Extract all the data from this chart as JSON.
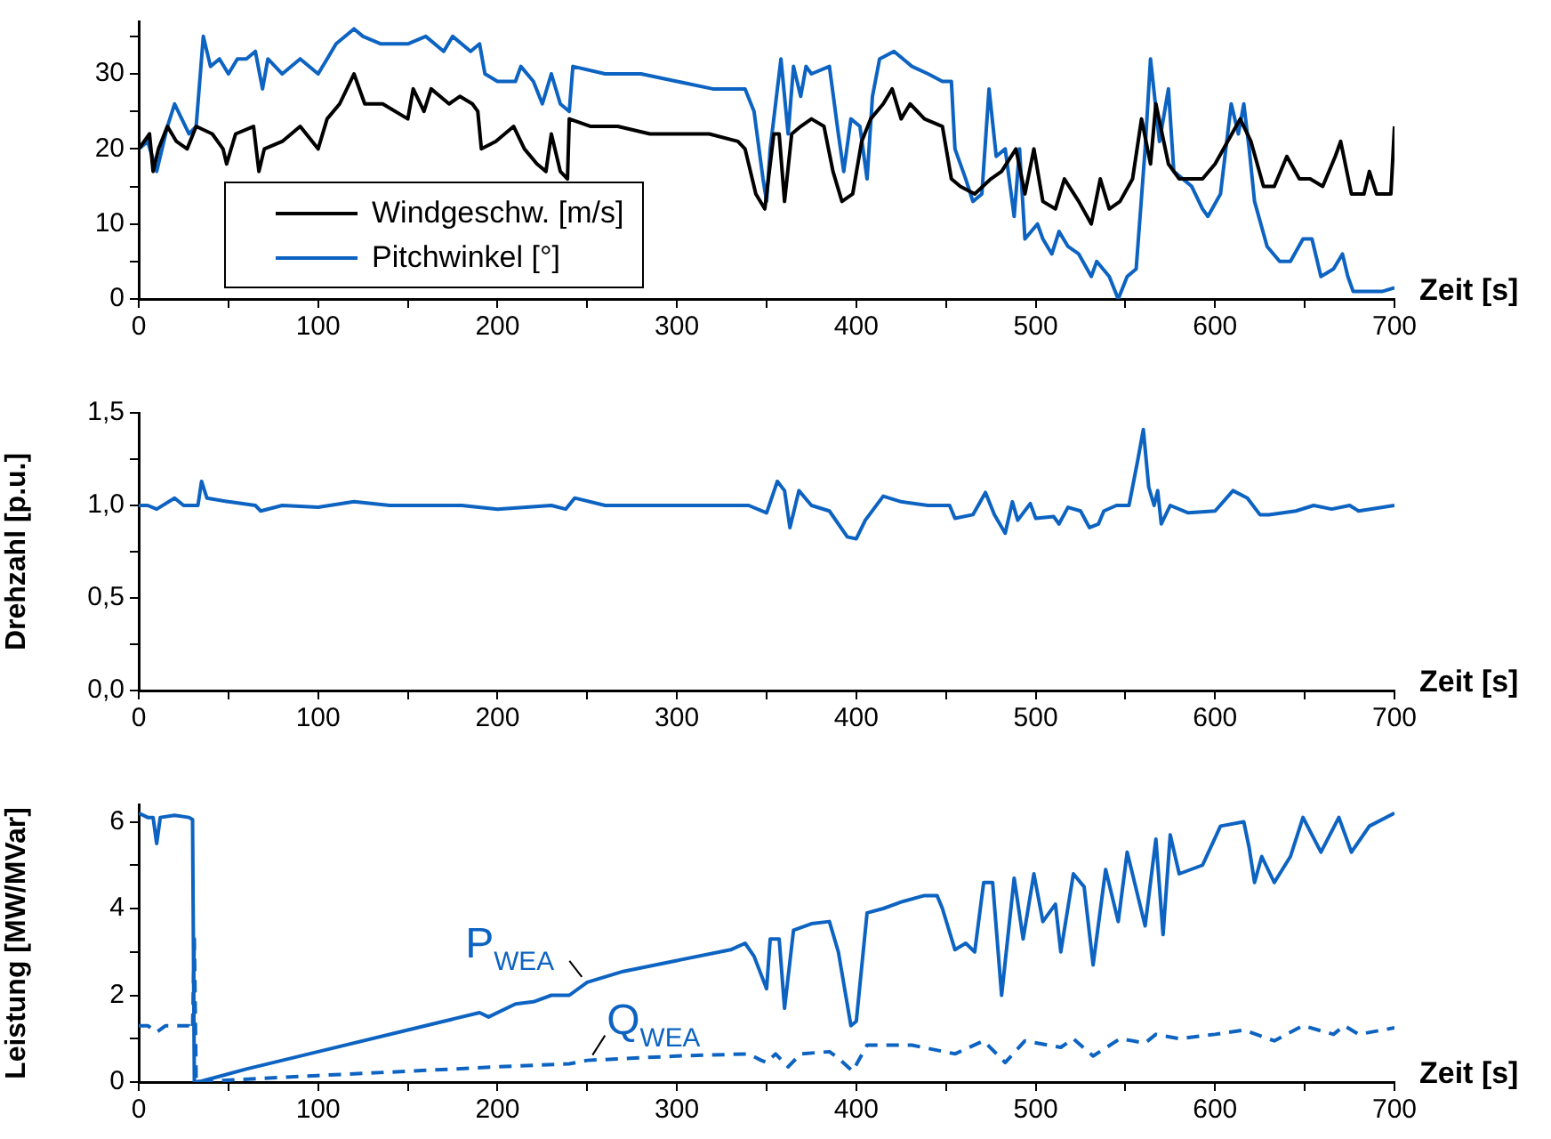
{
  "chart_data": [
    {
      "type": "line",
      "xlabel": "Zeit [s]",
      "xlim": [
        0,
        700
      ],
      "xticks": [
        0,
        {
          "value": 50,
          "label": null
        },
        100,
        {
          "value": 150,
          "label": null
        },
        200,
        {
          "value": 250,
          "label": null
        },
        300,
        {
          "value": 350,
          "label": null
        },
        400,
        {
          "value": 450,
          "label": null
        },
        500,
        {
          "value": 550,
          "label": null
        },
        600,
        {
          "value": 650,
          "label": null
        },
        700
      ],
      "ylim": [
        0,
        37
      ],
      "yticks": [
        0,
        {
          "value": 5,
          "label": null
        },
        10,
        {
          "value": 15,
          "label": null
        },
        20,
        {
          "value": 25,
          "label": null
        },
        30,
        {
          "value": 35,
          "label": null
        }
      ],
      "grid": false,
      "legend": "bottom left",
      "marker": "none",
      "series": [
        {
          "name": "Windgeschw. [m/s]",
          "color": "#000000",
          "line_style": "solid",
          "x": [
            0,
            6,
            8,
            11,
            16,
            21,
            27,
            32,
            41,
            47,
            49,
            54,
            64,
            67,
            70,
            80,
            90,
            100,
            105,
            112,
            120,
            126,
            136,
            150,
            153,
            159,
            163,
            173,
            179,
            186,
            189,
            191,
            199,
            209,
            215,
            222,
            227,
            230,
            235,
            239,
            240,
            252,
            267,
            285,
            302,
            318,
            334,
            338,
            344,
            349,
            354,
            357,
            360,
            364,
            369,
            375,
            382,
            387,
            392,
            398,
            403,
            408,
            415,
            420,
            425,
            430,
            438,
            448,
            453,
            458,
            466,
            475,
            481,
            489,
            494,
            499,
            504,
            511,
            516,
            524,
            531,
            536,
            541,
            547,
            554,
            559,
            564,
            567,
            574,
            580,
            587,
            593,
            600,
            607,
            614,
            620,
            627,
            633,
            640,
            647,
            653,
            660,
            667,
            670,
            676,
            683,
            686,
            690,
            698,
            700
          ],
          "values": [
            20,
            22,
            17,
            20,
            23,
            21,
            20,
            23,
            22,
            20,
            18,
            22,
            23,
            17,
            20,
            21,
            23,
            20,
            24,
            26,
            30,
            26,
            26,
            24,
            28,
            25,
            28,
            26,
            27,
            26,
            25,
            20,
            21,
            23,
            20,
            18,
            17,
            22,
            17,
            16,
            24,
            23,
            23,
            22,
            22,
            22,
            21,
            20,
            14,
            12,
            22,
            22,
            13,
            22,
            23,
            24,
            23,
            17,
            13,
            14,
            21,
            24,
            26,
            28,
            24,
            26,
            24,
            23,
            16,
            15,
            14,
            16,
            17,
            20,
            14,
            20,
            13,
            12,
            16,
            13,
            10,
            16,
            12,
            13,
            16,
            24,
            18,
            26,
            18,
            16,
            16,
            16,
            18,
            21,
            24,
            21,
            15,
            15,
            19,
            16,
            16,
            15,
            19,
            21,
            14,
            14,
            17,
            14,
            14,
            23
          ]
        },
        {
          "name": "Pitchwinkel [°]",
          "color": "#0d63c1",
          "line_style": "solid",
          "x": [
            0,
            5,
            10,
            16,
            20,
            24,
            28,
            32,
            36,
            40,
            45,
            50,
            55,
            60,
            65,
            69,
            72,
            80,
            90,
            100,
            105,
            110,
            120,
            125,
            135,
            150,
            160,
            170,
            175,
            185,
            190,
            193,
            200,
            210,
            213,
            220,
            225,
            230,
            235,
            240,
            242,
            260,
            280,
            300,
            320,
            330,
            338,
            343,
            348,
            350,
            352,
            358,
            362,
            365,
            369,
            372,
            375,
            385,
            390,
            393,
            397,
            402,
            406,
            409,
            413,
            421,
            431,
            440,
            448,
            453,
            455,
            461,
            465,
            470,
            474,
            478,
            483,
            488,
            491,
            494,
            501,
            504,
            509,
            513,
            518,
            524,
            531,
            534,
            541,
            546,
            551,
            556,
            561,
            564,
            569,
            574,
            577,
            587,
            593,
            596,
            603,
            609,
            613,
            616,
            619,
            622,
            629,
            636,
            642,
            649,
            654,
            659,
            666,
            671,
            674,
            677,
            686,
            693,
            700
          ],
          "values": [
            20,
            21,
            17,
            23,
            26,
            24,
            22,
            23,
            35,
            31,
            32,
            30,
            32,
            32,
            33,
            28,
            32,
            30,
            32,
            30,
            32,
            34,
            36,
            35,
            34,
            34,
            35,
            33,
            35,
            33,
            34,
            30,
            29,
            29,
            31,
            29,
            26,
            30,
            26,
            25,
            31,
            30,
            30,
            29,
            28,
            28,
            28,
            25,
            16,
            13,
            20,
            32,
            22,
            31,
            27,
            31,
            30,
            31,
            22,
            17,
            24,
            23,
            16,
            27,
            32,
            33,
            31,
            30,
            29,
            29,
            20,
            16,
            13,
            14,
            28,
            19,
            20,
            11,
            20,
            8,
            10,
            8,
            6,
            9,
            7,
            6,
            3,
            5,
            3,
            0,
            3,
            4,
            20,
            32,
            21,
            28,
            17,
            15,
            12,
            11,
            14,
            26,
            22,
            26,
            20,
            13,
            7,
            5,
            5,
            8,
            8,
            3,
            4,
            6,
            3,
            1,
            1,
            1,
            1.5
          ]
        }
      ]
    },
    {
      "type": "line",
      "ylabel": "Drehzahl [p.u.]",
      "xlabel": "Zeit [s]",
      "xlim": [
        0,
        700
      ],
      "xticks": [
        0,
        {
          "value": 50,
          "label": null
        },
        100,
        {
          "value": 150,
          "label": null
        },
        200,
        {
          "value": 250,
          "label": null
        },
        300,
        {
          "value": 350,
          "label": null
        },
        400,
        {
          "value": 450,
          "label": null
        },
        500,
        {
          "value": 550,
          "label": null
        },
        600,
        {
          "value": 650,
          "label": null
        },
        700
      ],
      "ylim": [
        0,
        1.5
      ],
      "yticks": [
        {
          "value": 0,
          "label": "0,0"
        },
        {
          "value": 0.25,
          "label": null
        },
        {
          "value": 0.5,
          "label": "0,5"
        },
        {
          "value": 0.75,
          "label": null
        },
        {
          "value": 1,
          "label": "1,0"
        },
        {
          "value": 1.25,
          "label": null
        },
        {
          "value": 1.5,
          "label": "1,5"
        }
      ],
      "grid": false,
      "marker": "none",
      "series": [
        {
          "color": "#0d63c1",
          "line_style": "solid",
          "x": [
            0,
            5,
            10,
            20,
            25,
            33,
            35,
            38,
            50,
            65,
            68,
            80,
            100,
            120,
            140,
            180,
            200,
            230,
            238,
            243,
            260,
            300,
            340,
            350,
            356,
            360,
            363,
            368,
            375,
            385,
            395,
            400,
            405,
            415,
            425,
            440,
            452,
            455,
            465,
            472,
            477,
            483,
            487,
            490,
            497,
            500,
            510,
            513,
            518,
            525,
            530,
            535,
            538,
            545,
            552,
            557,
            560,
            563,
            566,
            568,
            570,
            575,
            585,
            600,
            610,
            618,
            625,
            630,
            645,
            655,
            665,
            675,
            680,
            700
          ],
          "values": [
            1.0,
            1.0,
            0.98,
            1.04,
            1.0,
            1.0,
            1.13,
            1.04,
            1.02,
            1.0,
            0.97,
            1.0,
            0.99,
            1.02,
            1.0,
            1.0,
            0.98,
            1.0,
            0.98,
            1.04,
            1.0,
            1.0,
            1.0,
            0.96,
            1.13,
            1.08,
            0.88,
            1.08,
            1.0,
            0.97,
            0.83,
            0.82,
            0.92,
            1.05,
            1.02,
            1.0,
            1.0,
            0.93,
            0.95,
            1.07,
            0.95,
            0.85,
            1.02,
            0.92,
            1.01,
            0.93,
            0.94,
            0.9,
            0.99,
            0.97,
            0.88,
            0.9,
            0.97,
            1.0,
            1.0,
            1.25,
            1.41,
            1.1,
            1.0,
            1.08,
            0.9,
            1.0,
            0.96,
            0.97,
            1.08,
            1.04,
            0.95,
            0.95,
            0.97,
            1.0,
            0.98,
            1.0,
            0.97,
            1.0
          ]
        }
      ]
    },
    {
      "type": "line",
      "ylabel": "Leistung [MW/MVar]",
      "xlabel": "Zeit [s]",
      "xlim": [
        0,
        700
      ],
      "xticks": [
        0,
        {
          "value": 50,
          "label": null
        },
        100,
        {
          "value": 150,
          "label": null
        },
        200,
        {
          "value": 250,
          "label": null
        },
        300,
        {
          "value": 350,
          "label": null
        },
        400,
        {
          "value": 450,
          "label": null
        },
        500,
        {
          "value": 550,
          "label": null
        },
        600,
        {
          "value": 650,
          "label": null
        },
        700
      ],
      "ylim": [
        0,
        6.4
      ],
      "yticks": [
        0,
        {
          "value": 1,
          "label": null
        },
        2,
        {
          "value": 3,
          "label": null
        },
        4,
        {
          "value": 5,
          "label": null
        },
        6
      ],
      "grid": false,
      "marker": "none",
      "series": [
        {
          "name": "P$_{WEA}$",
          "color": "#0d63c1",
          "line_style": "solid",
          "x": [
            0,
            5,
            8,
            10,
            12,
            20,
            28,
            30,
            31,
            35,
            60,
            100,
            150,
            170,
            190,
            195,
            210,
            220,
            230,
            240,
            250,
            270,
            300,
            330,
            338,
            343,
            350,
            352,
            357,
            360,
            365,
            375,
            385,
            390,
            397,
            400,
            406,
            415,
            425,
            438,
            445,
            448,
            455,
            461,
            466,
            471,
            476,
            481,
            488,
            493,
            499,
            504,
            511,
            514,
            521,
            527,
            532,
            539,
            546,
            551,
            561,
            567,
            571,
            575,
            580,
            593,
            603,
            616,
            619,
            622,
            626,
            633,
            642,
            649,
            659,
            669,
            676,
            686,
            700
          ],
          "values": [
            6.2,
            6.1,
            6.1,
            5.5,
            6.1,
            6.15,
            6.1,
            6.05,
            0,
            0.02,
            0.3,
            0.7,
            1.2,
            1.4,
            1.6,
            1.5,
            1.8,
            1.85,
            2.0,
            2.0,
            2.3,
            2.55,
            2.8,
            3.05,
            3.2,
            2.9,
            2.15,
            3.3,
            3.3,
            1.7,
            3.5,
            3.65,
            3.7,
            3.0,
            1.3,
            1.4,
            3.9,
            4.0,
            4.15,
            4.3,
            4.3,
            4.0,
            3.05,
            3.2,
            3.0,
            4.6,
            4.6,
            2.0,
            4.7,
            3.3,
            4.8,
            3.7,
            4.1,
            3.0,
            4.8,
            4.5,
            2.7,
            4.9,
            3.7,
            5.3,
            3.6,
            5.6,
            3.4,
            5.7,
            4.8,
            5.0,
            5.9,
            6.0,
            5.4,
            4.6,
            5.2,
            4.6,
            5.2,
            6.1,
            5.3,
            6.1,
            5.3,
            5.9,
            6.2
          ]
        },
        {
          "name": "Q$_{WEA}$",
          "color": "#0d63c1",
          "line_style": "dashed",
          "x": [
            0,
            5,
            10,
            15,
            28,
            30,
            31,
            32,
            40,
            100,
            150,
            200,
            240,
            250,
            300,
            340,
            347,
            350,
            355,
            362,
            369,
            385,
            390,
            398,
            406,
            431,
            455,
            471,
            483,
            494,
            514,
            521,
            532,
            547,
            561,
            567,
            580,
            600,
            616,
            633,
            649,
            666,
            672,
            680,
            700
          ],
          "values": [
            1.3,
            1.3,
            1.15,
            1.3,
            1.3,
            1.2,
            3.3,
            0,
            0.02,
            0.15,
            0.25,
            0.35,
            0.42,
            0.5,
            0.6,
            0.65,
            0.5,
            0.45,
            0.65,
            0.35,
            0.65,
            0.7,
            0.55,
            0.25,
            0.85,
            0.85,
            0.65,
            0.95,
            0.45,
            0.95,
            0.8,
            1.0,
            0.6,
            1.0,
            0.9,
            1.1,
            1.0,
            1.1,
            1.2,
            0.95,
            1.3,
            1.1,
            1.3,
            1.1,
            1.25
          ]
        }
      ]
    }
  ]
}
